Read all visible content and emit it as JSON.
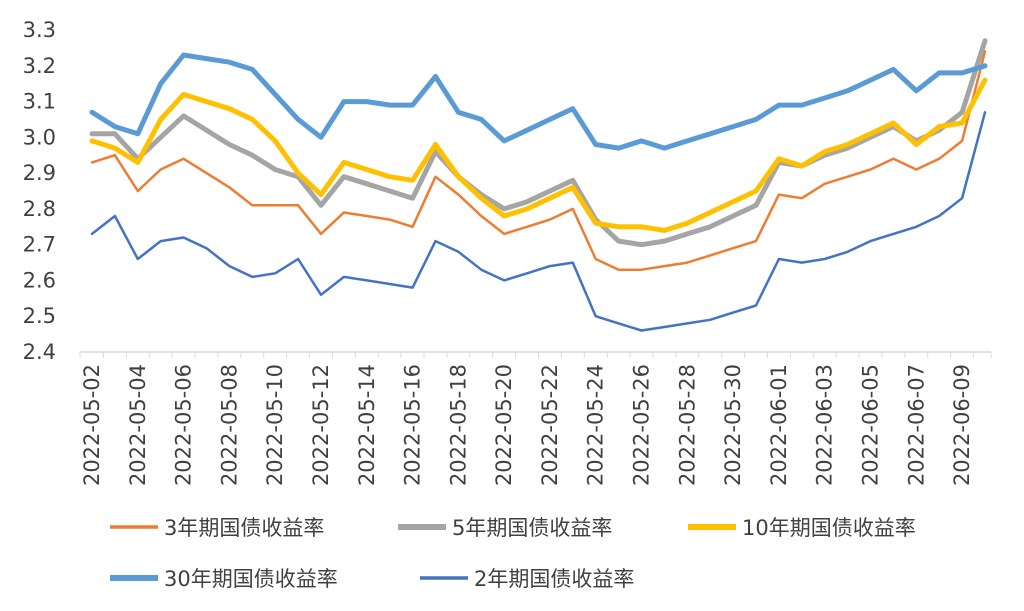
{
  "chart_data": {
    "type": "line",
    "x": [
      "2022-05-02",
      "2022-05-03",
      "2022-05-04",
      "2022-05-05",
      "2022-05-06",
      "2022-05-07",
      "2022-05-08",
      "2022-05-09",
      "2022-05-10",
      "2022-05-11",
      "2022-05-12",
      "2022-05-13",
      "2022-05-14",
      "2022-05-15",
      "2022-05-16",
      "2022-05-17",
      "2022-05-18",
      "2022-05-19",
      "2022-05-20",
      "2022-05-21",
      "2022-05-22",
      "2022-05-23",
      "2022-05-24",
      "2022-05-25",
      "2022-05-26",
      "2022-05-27",
      "2022-05-28",
      "2022-05-29",
      "2022-05-30",
      "2022-05-31",
      "2022-06-01",
      "2022-06-02",
      "2022-06-03",
      "2022-06-04",
      "2022-06-05",
      "2022-06-06",
      "2022-06-07",
      "2022-06-08",
      "2022-06-09",
      "2022-06-10"
    ],
    "x_tick_labels": [
      "2022-05-02",
      "2022-05-04",
      "2022-05-06",
      "2022-05-08",
      "2022-05-10",
      "2022-05-12",
      "2022-05-14",
      "2022-05-16",
      "2022-05-18",
      "2022-05-20",
      "2022-05-22",
      "2022-05-24",
      "2022-05-26",
      "2022-05-28",
      "2022-05-30",
      "2022-06-01",
      "2022-06-03",
      "2022-06-05",
      "2022-06-07",
      "2022-06-09"
    ],
    "y_ticks": [
      "2.4",
      "2.5",
      "2.6",
      "2.7",
      "2.8",
      "2.9",
      "3.0",
      "3.1",
      "3.2",
      "3.3"
    ],
    "ylim": [
      2.4,
      3.3
    ],
    "grid": false,
    "legend_position": "bottom",
    "series": [
      {
        "name": "3年期国债收益率",
        "color": "#ED7D31",
        "width": 2.5,
        "values": [
          2.93,
          2.95,
          2.85,
          2.91,
          2.94,
          2.9,
          2.86,
          2.81,
          2.81,
          2.81,
          2.73,
          2.79,
          2.78,
          2.77,
          2.75,
          2.89,
          2.84,
          2.78,
          2.73,
          2.75,
          2.77,
          2.8,
          2.66,
          2.63,
          2.63,
          2.64,
          2.65,
          2.67,
          2.69,
          2.71,
          2.84,
          2.83,
          2.87,
          2.89,
          2.91,
          2.94,
          2.91,
          2.94,
          2.99,
          3.24
        ]
      },
      {
        "name": "5年期国债收益率",
        "color": "#A5A5A5",
        "width": 5,
        "values": [
          3.01,
          3.01,
          2.94,
          3.0,
          3.06,
          3.02,
          2.98,
          2.95,
          2.91,
          2.89,
          2.81,
          2.89,
          2.87,
          2.85,
          2.83,
          2.96,
          2.89,
          2.84,
          2.8,
          2.82,
          2.85,
          2.88,
          2.77,
          2.71,
          2.7,
          2.71,
          2.73,
          2.75,
          2.78,
          2.81,
          2.93,
          2.92,
          2.95,
          2.97,
          3.0,
          3.03,
          2.99,
          3.02,
          3.07,
          3.27
        ]
      },
      {
        "name": "10年期国债收益率",
        "color": "#FFC000",
        "width": 5,
        "values": [
          2.99,
          2.97,
          2.93,
          3.05,
          3.12,
          3.1,
          3.08,
          3.05,
          2.99,
          2.9,
          2.84,
          2.93,
          2.91,
          2.89,
          2.88,
          2.98,
          2.89,
          2.83,
          2.78,
          2.8,
          2.83,
          2.86,
          2.76,
          2.75,
          2.75,
          2.74,
          2.76,
          2.79,
          2.82,
          2.85,
          2.94,
          2.92,
          2.96,
          2.98,
          3.01,
          3.04,
          2.98,
          3.03,
          3.04,
          3.16
        ]
      },
      {
        "name": "30年期国债收益率",
        "color": "#5B9BD5",
        "width": 5,
        "values": [
          3.07,
          3.03,
          3.01,
          3.15,
          3.23,
          3.22,
          3.21,
          3.19,
          3.12,
          3.05,
          3.0,
          3.1,
          3.1,
          3.09,
          3.09,
          3.17,
          3.07,
          3.05,
          2.99,
          3.02,
          3.05,
          3.08,
          2.98,
          2.97,
          2.99,
          2.97,
          2.99,
          3.01,
          3.03,
          3.05,
          3.09,
          3.09,
          3.11,
          3.13,
          3.16,
          3.19,
          3.13,
          3.18,
          3.18,
          3.2
        ]
      },
      {
        "name": "2年期国债收益率",
        "color": "#4472C4",
        "width": 2.5,
        "values": [
          2.73,
          2.78,
          2.66,
          2.71,
          2.72,
          2.69,
          2.64,
          2.61,
          2.62,
          2.66,
          2.56,
          2.61,
          2.6,
          2.59,
          2.58,
          2.71,
          2.68,
          2.63,
          2.6,
          2.62,
          2.64,
          2.65,
          2.5,
          2.48,
          2.46,
          2.47,
          2.48,
          2.49,
          2.51,
          2.53,
          2.66,
          2.65,
          2.66,
          2.68,
          2.71,
          2.73,
          2.75,
          2.78,
          2.83,
          3.07
        ]
      }
    ]
  }
}
